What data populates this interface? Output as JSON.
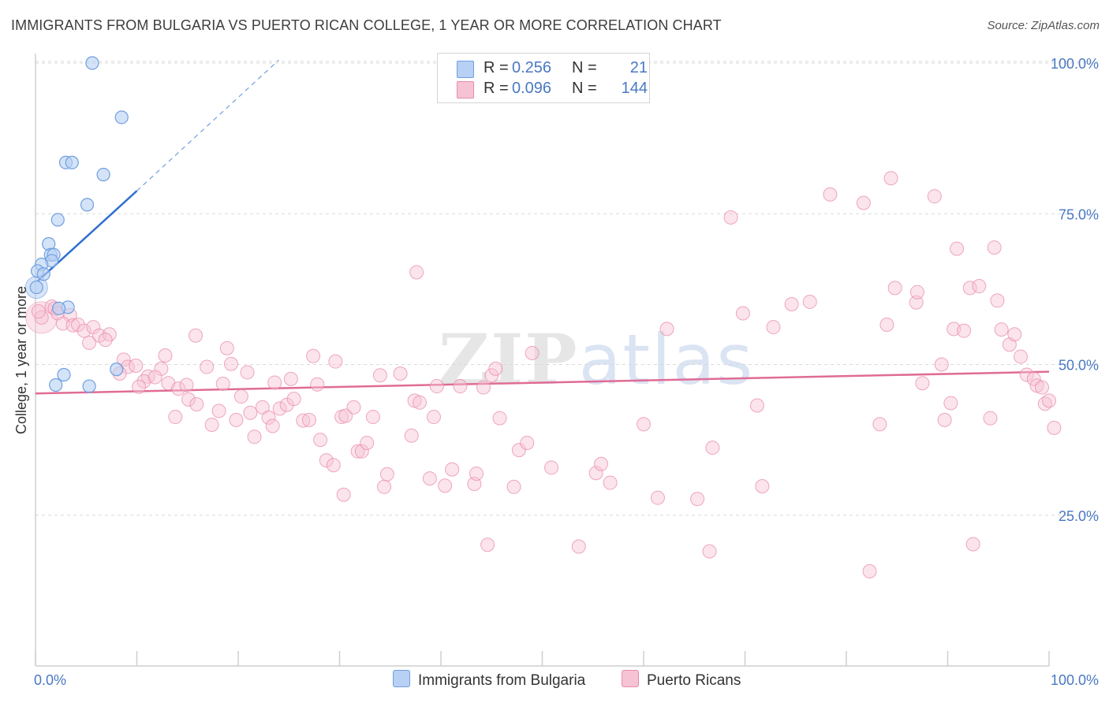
{
  "title": "IMMIGRANTS FROM BULGARIA VS PUERTO RICAN COLLEGE, 1 YEAR OR MORE CORRELATION CHART",
  "source": "Source: ZipAtlas.com",
  "watermark": {
    "zip": "ZIP",
    "atlas": "atlas"
  },
  "colors": {
    "blue_fill": "#b8d0f3",
    "blue_stroke": "#6e9fe0",
    "blue_line": "#2f6fd0",
    "pink_fill": "#f6c3d4",
    "pink_stroke": "#e98bab",
    "pink_line": "#e06c96",
    "grid": "#d9d9d9",
    "tick_text": "#4a78c2"
  },
  "legend_top": [
    {
      "r_label": "R =",
      "r_value": "0.256",
      "n_label": "N =",
      "n_value": "21"
    },
    {
      "r_label": "R =",
      "r_value": "0.096",
      "n_label": "N =",
      "n_value": "144"
    }
  ],
  "legend_bottom": [
    "Immigrants from Bulgaria",
    "Puerto Ricans"
  ],
  "chart_data": {
    "type": "scatter",
    "title": "IMMIGRANTS FROM BULGARIA VS PUERTO RICAN COLLEGE, 1 YEAR OR MORE CORRELATION CHART",
    "xlabel": "",
    "ylabel": "College, 1 year or more",
    "xlim": [
      0,
      100
    ],
    "ylim": [
      0,
      105
    ],
    "x_tick_labels": [
      "0.0%",
      "100.0%"
    ],
    "y_ticks": [
      25,
      50,
      75,
      100
    ],
    "y_tick_labels": [
      "25.0%",
      "50.0%",
      "75.0%",
      "100.0%"
    ],
    "grid": true,
    "legend_position": "bottom-center",
    "series": [
      {
        "name": "Immigrants from Bulgaria",
        "r": 0.256,
        "n": 21,
        "trend": {
          "x": [
            0.2,
            10.0
          ],
          "y": [
            63.8,
            78.8
          ],
          "dashed_to": [
            24.0,
            100.5
          ]
        },
        "points": [
          [
            5.6,
            100.0
          ],
          [
            8.5,
            91.0
          ],
          [
            3.0,
            83.5
          ],
          [
            3.6,
            83.5
          ],
          [
            6.7,
            81.5
          ],
          [
            5.1,
            76.5
          ],
          [
            2.2,
            74.0
          ],
          [
            1.3,
            70.0
          ],
          [
            1.5,
            68.2
          ],
          [
            1.8,
            68.2
          ],
          [
            1.6,
            67.2
          ],
          [
            0.6,
            66.6
          ],
          [
            0.2,
            65.5
          ],
          [
            0.8,
            65.0
          ],
          [
            0.1,
            62.8
          ],
          [
            3.2,
            59.5
          ],
          [
            2.3,
            59.3
          ],
          [
            8.0,
            49.2
          ],
          [
            2.8,
            48.3
          ],
          [
            2.0,
            46.6
          ],
          [
            5.3,
            46.4
          ]
        ],
        "large_points": [
          [
            0.1,
            62.8
          ]
        ]
      },
      {
        "name": "Puerto Ricans",
        "r": 0.096,
        "n": 144,
        "trend": {
          "x": [
            0,
            100
          ],
          "y": [
            45.2,
            48.8
          ]
        },
        "points": [
          [
            0.6,
            57.8
          ],
          [
            1.6,
            59.6
          ],
          [
            1.9,
            59.3
          ],
          [
            2.2,
            58.5
          ],
          [
            3.4,
            58.2
          ],
          [
            2.7,
            56.8
          ],
          [
            3.7,
            56.5
          ],
          [
            4.2,
            56.6
          ],
          [
            4.8,
            55.6
          ],
          [
            5.7,
            56.2
          ],
          [
            6.3,
            54.8
          ],
          [
            7.3,
            55.0
          ],
          [
            5.3,
            53.6
          ],
          [
            6.9,
            54.1
          ],
          [
            8.7,
            50.8
          ],
          [
            9.1,
            49.6
          ],
          [
            9.9,
            49.8
          ],
          [
            8.3,
            48.5
          ],
          [
            11.1,
            48.0
          ],
          [
            12.8,
            51.5
          ],
          [
            12.4,
            49.3
          ],
          [
            10.7,
            47.2
          ],
          [
            10.2,
            46.3
          ],
          [
            11.8,
            47.9
          ],
          [
            13.1,
            46.9
          ],
          [
            14.1,
            46.0
          ],
          [
            14.9,
            46.6
          ],
          [
            13.8,
            41.3
          ],
          [
            15.1,
            44.2
          ],
          [
            15.9,
            43.4
          ],
          [
            15.8,
            54.8
          ],
          [
            16.9,
            49.6
          ],
          [
            18.1,
            42.3
          ],
          [
            17.4,
            40.0
          ],
          [
            18.5,
            46.8
          ],
          [
            18.9,
            52.7
          ],
          [
            19.3,
            50.1
          ],
          [
            19.8,
            40.8
          ],
          [
            20.3,
            44.7
          ],
          [
            20.9,
            48.7
          ],
          [
            21.2,
            42.0
          ],
          [
            21.6,
            38.0
          ],
          [
            22.4,
            42.9
          ],
          [
            23.0,
            41.2
          ],
          [
            23.4,
            39.8
          ],
          [
            23.6,
            47.0
          ],
          [
            24.1,
            42.7
          ],
          [
            24.8,
            43.3
          ],
          [
            25.2,
            47.6
          ],
          [
            25.5,
            44.3
          ],
          [
            26.4,
            40.7
          ],
          [
            27.0,
            40.8
          ],
          [
            27.4,
            51.4
          ],
          [
            27.8,
            46.7
          ],
          [
            28.1,
            37.5
          ],
          [
            28.7,
            34.1
          ],
          [
            29.4,
            33.3
          ],
          [
            29.6,
            50.5
          ],
          [
            30.2,
            41.3
          ],
          [
            30.6,
            41.5
          ],
          [
            30.4,
            28.4
          ],
          [
            31.4,
            42.9
          ],
          [
            31.8,
            35.6
          ],
          [
            32.2,
            35.6
          ],
          [
            32.7,
            37.0
          ],
          [
            33.3,
            41.3
          ],
          [
            34.0,
            48.2
          ],
          [
            34.4,
            29.7
          ],
          [
            34.7,
            31.8
          ],
          [
            36.0,
            48.5
          ],
          [
            37.1,
            38.2
          ],
          [
            37.4,
            44.0
          ],
          [
            37.9,
            43.7
          ],
          [
            37.6,
            65.3
          ],
          [
            39.3,
            41.3
          ],
          [
            38.9,
            31.1
          ],
          [
            39.6,
            46.4
          ],
          [
            40.4,
            29.9
          ],
          [
            41.1,
            32.6
          ],
          [
            41.9,
            46.4
          ],
          [
            43.3,
            30.2
          ],
          [
            43.5,
            31.9
          ],
          [
            44.2,
            46.2
          ],
          [
            45.0,
            48.2
          ],
          [
            45.4,
            49.3
          ],
          [
            44.6,
            20.1
          ],
          [
            45.8,
            41.1
          ],
          [
            47.2,
            29.7
          ],
          [
            47.7,
            35.8
          ],
          [
            48.5,
            37.0
          ],
          [
            49.0,
            51.9
          ],
          [
            50.9,
            32.9
          ],
          [
            53.6,
            19.8
          ],
          [
            55.3,
            32.0
          ],
          [
            55.8,
            33.5
          ],
          [
            56.7,
            30.4
          ],
          [
            60.0,
            40.1
          ],
          [
            61.4,
            27.9
          ],
          [
            62.3,
            55.9
          ],
          [
            65.3,
            27.7
          ],
          [
            66.5,
            19.0
          ],
          [
            66.8,
            36.2
          ],
          [
            68.6,
            74.4
          ],
          [
            69.8,
            58.5
          ],
          [
            71.2,
            43.2
          ],
          [
            71.7,
            29.8
          ],
          [
            72.8,
            56.2
          ],
          [
            74.6,
            60.0
          ],
          [
            76.4,
            60.4
          ],
          [
            78.4,
            78.2
          ],
          [
            81.7,
            76.8
          ],
          [
            84.0,
            56.6
          ],
          [
            83.3,
            40.1
          ],
          [
            82.3,
            15.7
          ],
          [
            84.4,
            80.9
          ],
          [
            84.8,
            62.7
          ],
          [
            86.9,
            60.3
          ],
          [
            87.0,
            62.0
          ],
          [
            87.5,
            46.9
          ],
          [
            88.7,
            77.9
          ],
          [
            89.4,
            50.0
          ],
          [
            89.7,
            40.8
          ],
          [
            90.3,
            43.6
          ],
          [
            90.6,
            55.9
          ],
          [
            90.9,
            69.2
          ],
          [
            91.6,
            55.6
          ],
          [
            92.2,
            62.7
          ],
          [
            93.1,
            63.0
          ],
          [
            92.5,
            20.2
          ],
          [
            94.2,
            41.1
          ],
          [
            94.6,
            69.4
          ],
          [
            94.9,
            60.6
          ],
          [
            95.3,
            55.8
          ],
          [
            96.1,
            53.3
          ],
          [
            96.6,
            55.0
          ],
          [
            97.2,
            51.3
          ],
          [
            97.8,
            48.3
          ],
          [
            98.5,
            47.6
          ],
          [
            98.8,
            46.5
          ],
          [
            99.3,
            46.2
          ],
          [
            99.6,
            43.5
          ],
          [
            100.0,
            44.0
          ],
          [
            100.5,
            39.5
          ],
          [
            0.3,
            58.8
          ]
        ],
        "large_points": [
          [
            0.6,
            57.8
          ]
        ]
      }
    ]
  }
}
